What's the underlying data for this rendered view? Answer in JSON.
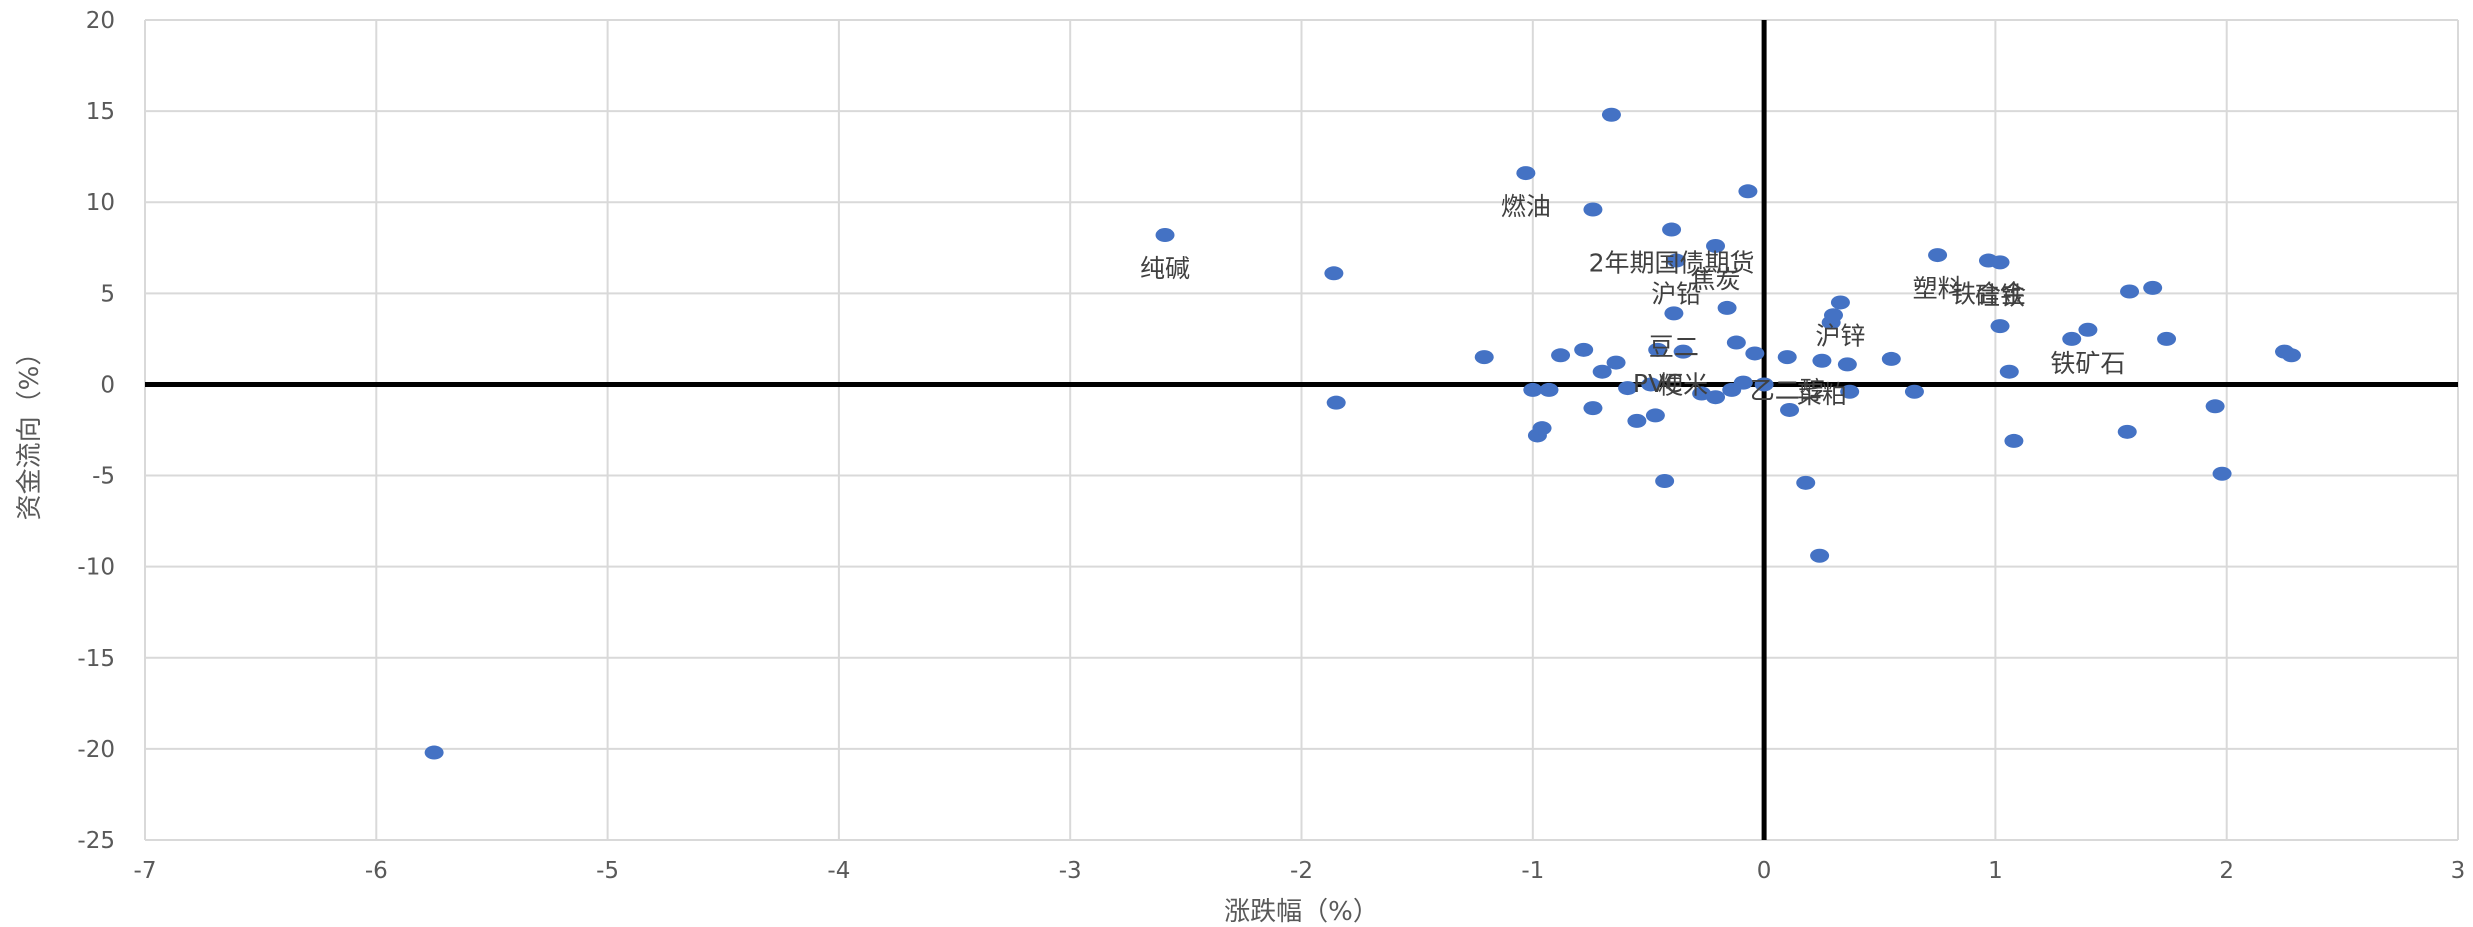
{
  "chart_data": {
    "type": "scatter",
    "title": "",
    "xlabel": "涨跌幅（%）",
    "ylabel": "资金流向（%）",
    "xlim": [
      -7,
      3
    ],
    "ylim": [
      -25,
      20
    ],
    "x_ticks": [
      -7,
      -6,
      -5,
      -4,
      -3,
      -2,
      -1,
      0,
      1,
      2,
      3
    ],
    "y_ticks": [
      -25,
      -20,
      -15,
      -10,
      -5,
      0,
      5,
      10,
      15,
      20
    ],
    "grid": "vertical and horizontal major gridlines",
    "marker_color": "#4472C4",
    "gridline_color": "#D9D9D9",
    "axis_color": "#000000",
    "points": [
      {
        "x": -5.75,
        "y": -20.2
      },
      {
        "x": -2.59,
        "y": 8.2,
        "label": "纯碱"
      },
      {
        "x": -1.86,
        "y": 6.1
      },
      {
        "x": -1.85,
        "y": -1.0
      },
      {
        "x": -1.21,
        "y": 1.5
      },
      {
        "x": -1.03,
        "y": 11.6,
        "label": "燃油"
      },
      {
        "x": -1.0,
        "y": -0.3
      },
      {
        "x": -0.98,
        "y": -2.8
      },
      {
        "x": -0.96,
        "y": -2.4
      },
      {
        "x": -0.93,
        "y": -0.3
      },
      {
        "x": -0.88,
        "y": 1.6
      },
      {
        "x": -0.78,
        "y": 1.9
      },
      {
        "x": -0.74,
        "y": 9.6
      },
      {
        "x": -0.74,
        "y": -1.3
      },
      {
        "x": -0.7,
        "y": 0.7
      },
      {
        "x": -0.66,
        "y": 14.8
      },
      {
        "x": -0.64,
        "y": 1.2
      },
      {
        "x": -0.59,
        "y": -0.2
      },
      {
        "x": -0.55,
        "y": -2.0
      },
      {
        "x": -0.49,
        "y": 0.0
      },
      {
        "x": -0.47,
        "y": -1.7
      },
      {
        "x": -0.46,
        "y": 1.9,
        "label": "PVC"
      },
      {
        "x": -0.43,
        "y": -5.3
      },
      {
        "x": -0.4,
        "y": 8.5,
        "label": "2年期国债期货"
      },
      {
        "x": -0.39,
        "y": 3.9,
        "label": "豆二"
      },
      {
        "x": -0.38,
        "y": 6.8,
        "label": "沪铅"
      },
      {
        "x": -0.35,
        "y": 1.8,
        "label": "粳米"
      },
      {
        "x": -0.27,
        "y": -0.5
      },
      {
        "x": -0.21,
        "y": -0.7
      },
      {
        "x": -0.21,
        "y": 7.6,
        "label": "焦炭"
      },
      {
        "x": -0.16,
        "y": 4.2
      },
      {
        "x": -0.14,
        "y": -0.3
      },
      {
        "x": -0.12,
        "y": 2.3
      },
      {
        "x": -0.09,
        "y": 0.1
      },
      {
        "x": -0.07,
        "y": 10.6
      },
      {
        "x": -0.04,
        "y": 1.7
      },
      {
        "x": 0.0,
        "y": 0.0
      },
      {
        "x": 0.1,
        "y": 1.5,
        "label": "乙二醇"
      },
      {
        "x": 0.11,
        "y": -1.4
      },
      {
        "x": 0.18,
        "y": -5.4
      },
      {
        "x": 0.24,
        "y": -9.4
      },
      {
        "x": 0.25,
        "y": 1.3,
        "label": "菜粕"
      },
      {
        "x": 0.29,
        "y": 3.4
      },
      {
        "x": 0.3,
        "y": 3.8
      },
      {
        "x": 0.33,
        "y": 4.5,
        "label": "沪锌"
      },
      {
        "x": 0.36,
        "y": 1.1
      },
      {
        "x": 0.37,
        "y": -0.4
      },
      {
        "x": 0.55,
        "y": 1.4
      },
      {
        "x": 0.65,
        "y": -0.4
      },
      {
        "x": 0.75,
        "y": 7.1,
        "label": "塑料"
      },
      {
        "x": 0.97,
        "y": 6.8,
        "label": "铁合金"
      },
      {
        "x": 1.02,
        "y": 6.7,
        "label": "硅铁"
      },
      {
        "x": 1.02,
        "y": 3.2
      },
      {
        "x": 1.06,
        "y": 0.7
      },
      {
        "x": 1.08,
        "y": -3.1
      },
      {
        "x": 1.33,
        "y": 2.5
      },
      {
        "x": 1.4,
        "y": 3.0,
        "label": "铁矿石"
      },
      {
        "x": 1.57,
        "y": -2.6
      },
      {
        "x": 1.58,
        "y": 5.1
      },
      {
        "x": 1.68,
        "y": 5.3
      },
      {
        "x": 1.74,
        "y": 2.5
      },
      {
        "x": 1.95,
        "y": -1.2
      },
      {
        "x": 1.98,
        "y": -4.9
      },
      {
        "x": 2.25,
        "y": 1.8
      },
      {
        "x": 2.28,
        "y": 1.6
      }
    ]
  }
}
